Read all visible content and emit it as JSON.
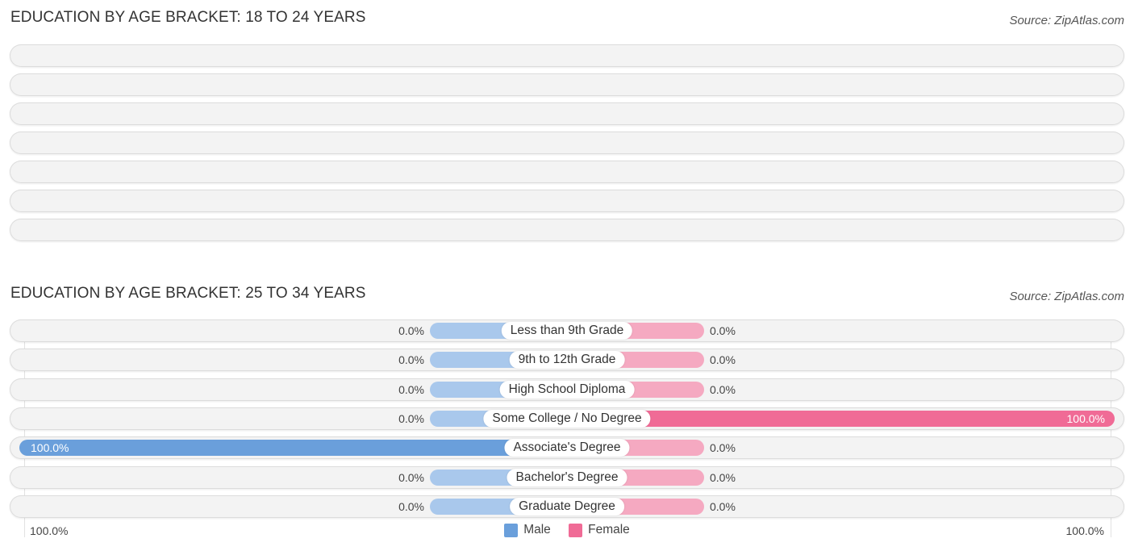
{
  "section1": {
    "title": "EDUCATION BY AGE BRACKET: 18 TO 24 YEARS",
    "source": "Source: ZipAtlas.com"
  },
  "section2": {
    "title": "EDUCATION BY AGE BRACKET: 25 TO 34 YEARS",
    "source": "Source: ZipAtlas.com"
  },
  "axis": {
    "left_label": "100.0%",
    "right_label": "100.0%"
  },
  "legend": {
    "male": "Male",
    "female": "Female"
  },
  "colors": {
    "male": "#6a9fdb",
    "male_light": "#a9c8ec",
    "female": "#f06b96",
    "female_light": "#f5a9c1"
  },
  "chart_data": [
    {
      "type": "bar",
      "title": "EDUCATION BY AGE BRACKET: 18 TO 24 YEARS",
      "categories": [],
      "series": []
    },
    {
      "type": "bar",
      "title": "EDUCATION BY AGE BRACKET: 25 TO 34 YEARS",
      "categories": [
        "Less than 9th Grade",
        "9th to 12th Grade",
        "High School Diploma",
        "Some College / No Degree",
        "Associate's Degree",
        "Bachelor's Degree",
        "Graduate Degree"
      ],
      "series": [
        {
          "name": "Male",
          "values": [
            0.0,
            0.0,
            0.0,
            0.0,
            100.0,
            0.0,
            0.0
          ],
          "labels": [
            "0.0%",
            "0.0%",
            "0.0%",
            "0.0%",
            "100.0%",
            "0.0%",
            "0.0%"
          ]
        },
        {
          "name": "Female",
          "values": [
            0.0,
            0.0,
            0.0,
            100.0,
            0.0,
            0.0,
            0.0
          ],
          "labels": [
            "0.0%",
            "0.0%",
            "0.0%",
            "100.0%",
            "0.0%",
            "0.0%",
            "0.0%"
          ]
        }
      ],
      "xlim": [
        -100,
        100
      ]
    }
  ]
}
